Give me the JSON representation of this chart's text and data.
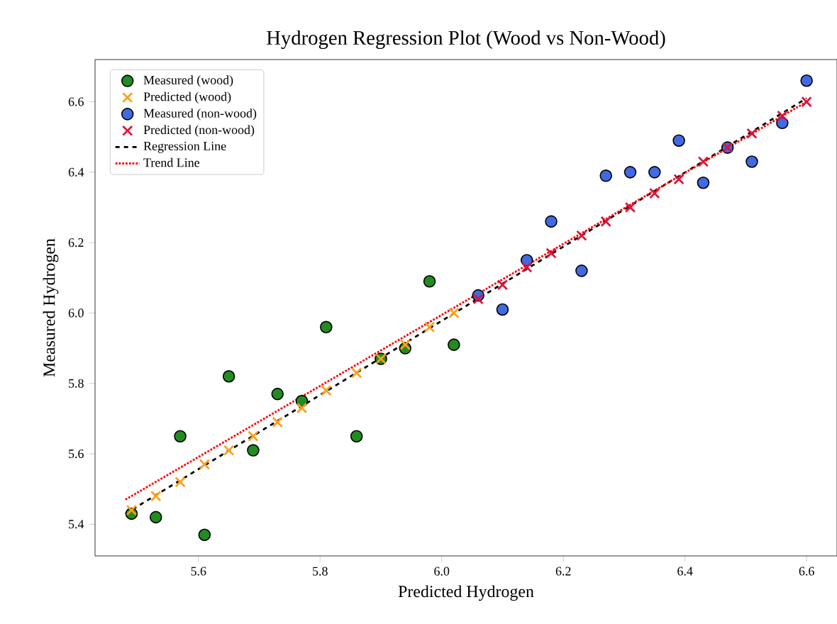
{
  "chart_data": {
    "type": "scatter",
    "title": "Hydrogen Regression Plot (Wood vs Non-Wood)",
    "xlabel": "Predicted Hydrogen",
    "ylabel": "Measured Hydrogen",
    "xlim": [
      5.43,
      6.65
    ],
    "ylim": [
      5.31,
      6.72
    ],
    "xticks": [
      5.6,
      5.8,
      {
        "value": 6.0,
        "label": "6.0"
      },
      6.2,
      6.4,
      6.6
    ],
    "yticks": [
      5.4,
      5.6,
      5.8,
      {
        "value": 6.0,
        "label": "6.0"
      },
      6.2,
      6.4,
      6.6
    ],
    "legend": "top left",
    "series": [
      {
        "name": "Measured (wood)",
        "marker": "circle",
        "color": "#228b22",
        "x": [
          5.49,
          5.53,
          5.57,
          5.61,
          5.65,
          5.69,
          5.73,
          5.77,
          5.81,
          5.86,
          5.9,
          5.94,
          5.98,
          6.02
        ],
        "values": [
          5.43,
          5.42,
          5.65,
          5.37,
          5.82,
          5.61,
          5.77,
          5.75,
          5.96,
          5.65,
          5.87,
          5.9,
          6.09,
          5.91
        ]
      },
      {
        "name": "Predicted (wood)",
        "marker": "cross",
        "color": "#ff9f1c",
        "x": [
          5.49,
          5.53,
          5.57,
          5.61,
          5.65,
          5.69,
          5.73,
          5.77,
          5.81,
          5.86,
          5.9,
          5.94,
          5.98,
          6.02
        ],
        "values": [
          5.44,
          5.48,
          5.52,
          5.57,
          5.61,
          5.65,
          5.69,
          5.73,
          5.78,
          5.83,
          5.87,
          5.91,
          5.96,
          6.0
        ]
      },
      {
        "name": "Measured (non-wood)",
        "marker": "circle",
        "color": "#4169e1",
        "x": [
          6.06,
          6.1,
          6.14,
          6.18,
          6.23,
          6.27,
          6.31,
          6.35,
          6.39,
          6.43,
          6.47,
          6.51,
          6.56,
          6.6
        ],
        "values": [
          6.05,
          6.01,
          6.15,
          6.26,
          6.12,
          6.39,
          6.4,
          6.4,
          6.49,
          6.37,
          6.47,
          6.43,
          6.54,
          6.66
        ]
      },
      {
        "name": "Predicted (non-wood)",
        "marker": "cross",
        "color": "#dc143c",
        "x": [
          6.06,
          6.1,
          6.14,
          6.18,
          6.23,
          6.27,
          6.31,
          6.35,
          6.39,
          6.43,
          6.47,
          6.51,
          6.56,
          6.6
        ],
        "values": [
          6.04,
          6.08,
          6.13,
          6.17,
          6.22,
          6.26,
          6.3,
          6.34,
          6.38,
          6.43,
          6.47,
          6.51,
          6.56,
          6.6
        ]
      },
      {
        "name": "Regression Line",
        "type": "line",
        "line_style": "dashed",
        "color": "#000000",
        "x": [
          5.48,
          6.6
        ],
        "values": [
          5.43,
          6.61
        ]
      },
      {
        "name": "Trend Line",
        "type": "line",
        "line_style": "dotted",
        "color": "#ff0000",
        "x": [
          5.48,
          6.6
        ],
        "values": [
          5.47,
          6.6
        ]
      }
    ]
  }
}
